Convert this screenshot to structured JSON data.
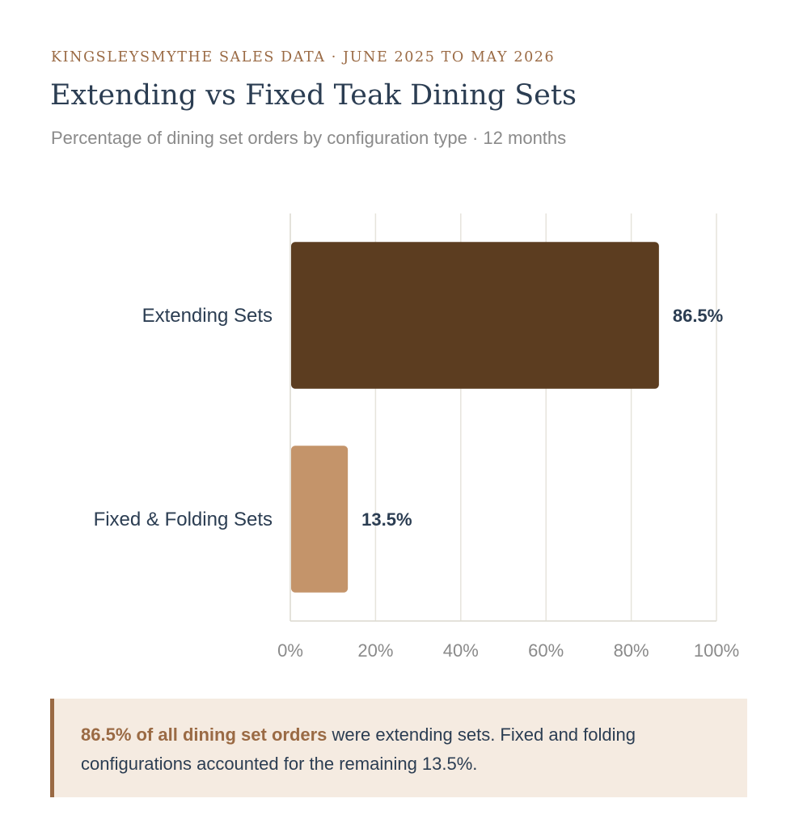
{
  "header": {
    "eyebrow": "KINGSLEYSMYTHE SALES DATA · JUNE 2025 TO MAY 2026",
    "title": "Extending vs Fixed Teak Dining Sets",
    "subtitle": "Percentage of dining set orders by configuration type · 12 months"
  },
  "chart_data": {
    "type": "bar",
    "orientation": "horizontal",
    "title": "Extending vs Fixed Teak Dining Sets",
    "subtitle": "Percentage of dining set orders by configuration type · 12 months",
    "categories": [
      "Extending Sets",
      "Fixed & Folding Sets"
    ],
    "values": [
      86.5,
      13.5
    ],
    "value_labels": [
      "86.5%",
      "13.5%"
    ],
    "bar_colors": [
      "#5c3d20",
      "#c4946a"
    ],
    "xlim": [
      0,
      100
    ],
    "xticks": [
      0,
      20,
      40,
      60,
      80,
      100
    ],
    "xtick_labels": [
      "0%",
      "20%",
      "40%",
      "60%",
      "80%",
      "100%"
    ],
    "xlabel": "",
    "ylabel": "",
    "grid": true,
    "legend": "none"
  },
  "callout": {
    "highlight": "86.5% of all dining set orders",
    "text": " were extending sets. Fixed and folding configurations accounted for the remaining 13.5%."
  },
  "colors": {
    "accent": "#9a6a44",
    "title": "#2b3d52",
    "callout_bg": "#f5ebe1"
  }
}
